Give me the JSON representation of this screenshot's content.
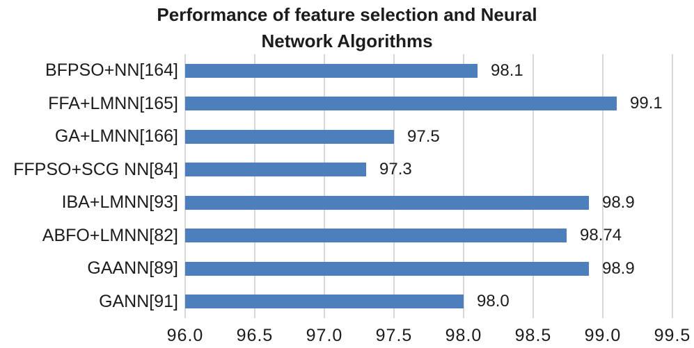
{
  "chart_data": {
    "type": "bar",
    "orientation": "horizontal",
    "title": "Performance of feature selection and Neural Network Algorithms",
    "title_lines": [
      "Performance of feature selection and Neural",
      "Network Algorithms"
    ],
    "categories": [
      "BFPSO+NN[164]",
      "FFA+LMNN[165]",
      "GA+LMNN[166]",
      "FFPSO+SCG NN[84]",
      "IBA+LMNN[93]",
      "ABFO+LMNN[82]",
      "GAANN[89]",
      "GANN[91]"
    ],
    "values": [
      98.1,
      99.1,
      97.5,
      97.3,
      98.9,
      98.74,
      98.9,
      98.0
    ],
    "value_labels": [
      "98.1",
      "99.1",
      "97.5",
      "97.3",
      "98.9",
      "98.74",
      "98.9",
      "98.0"
    ],
    "xlim": [
      96.0,
      99.5
    ],
    "x_tick_step": 0.5,
    "x_ticks": [
      "96.0",
      "96.5",
      "97.0",
      "97.5",
      "98.0",
      "98.5",
      "99.0",
      "99.5"
    ],
    "xlabel": "",
    "ylabel": "",
    "grid": "vertical-only",
    "legend": "none",
    "colors": {
      "bar": "#4d7fbd",
      "gridline": "#d8d8d8",
      "text": "#1c1c1c",
      "background": "#ffffff"
    }
  }
}
